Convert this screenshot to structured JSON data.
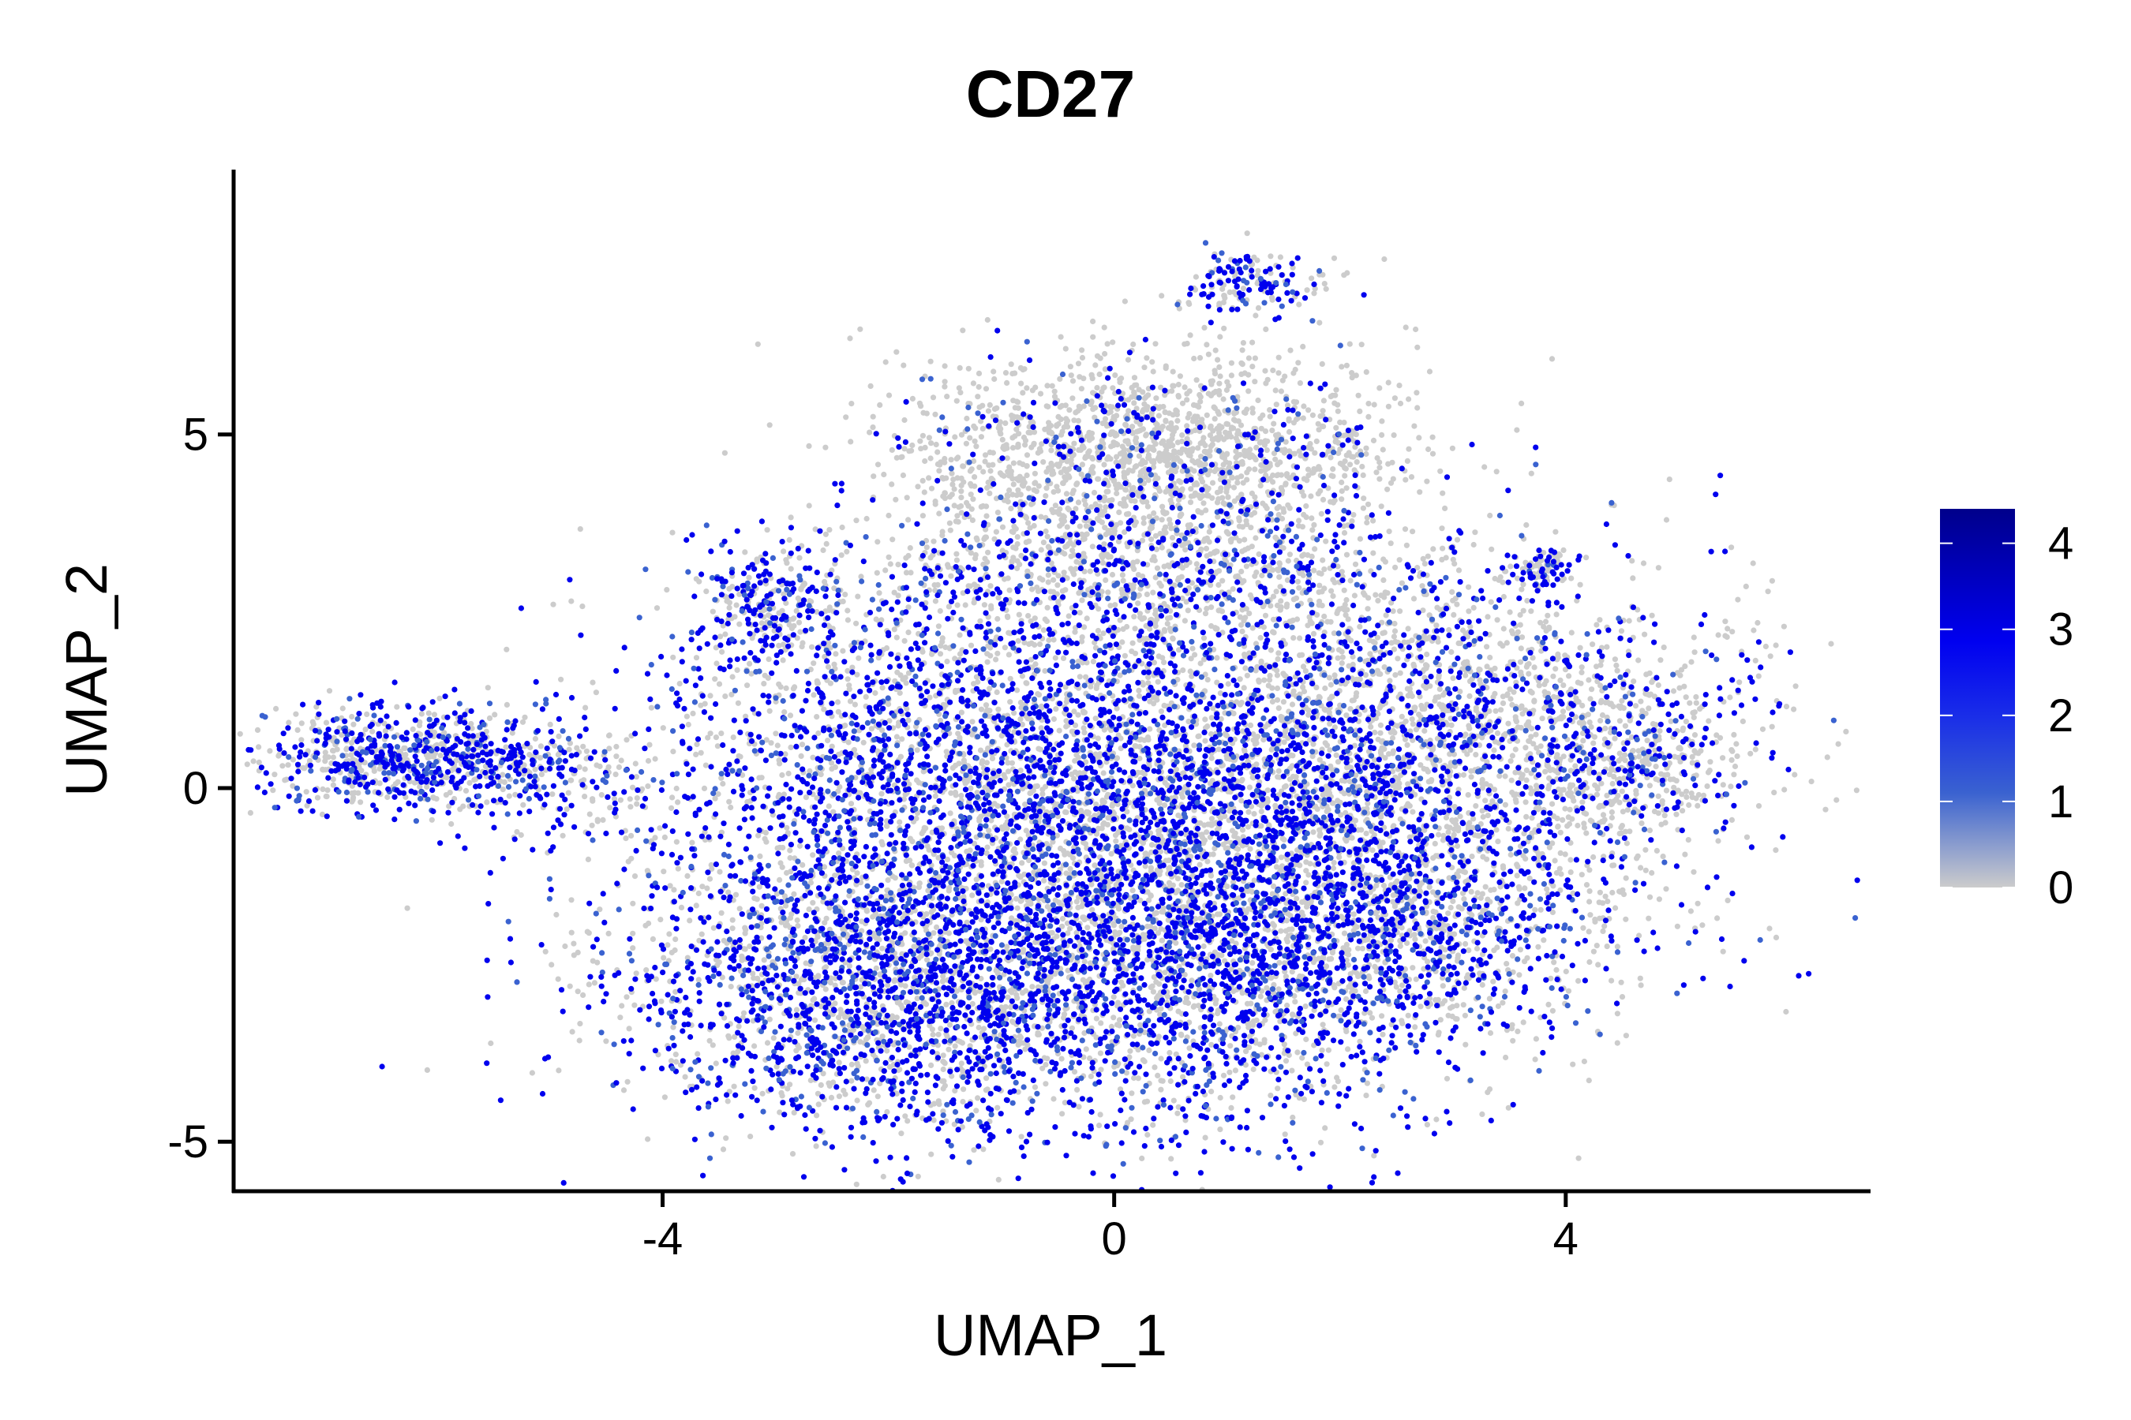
{
  "chart_data": {
    "type": "scatter",
    "title": "CD27",
    "xlabel": "UMAP_1",
    "ylabel": "UMAP_2",
    "xlim": [
      -7.8,
      6.7
    ],
    "ylim": [
      -5.7,
      8.8
    ],
    "x_ticks": [
      -4,
      0,
      4
    ],
    "y_ticks": [
      -5,
      0,
      5
    ],
    "x_tick_labels": [
      "-4",
      "0",
      "4"
    ],
    "y_tick_labels": [
      "-5",
      "0",
      "5"
    ],
    "grid": false,
    "legend": {
      "type": "colorbar",
      "placement": "right",
      "range": [
        0,
        4.4
      ],
      "ticks": [
        0,
        1,
        2,
        3,
        4
      ],
      "tick_labels": [
        "0",
        "1",
        "2",
        "3",
        "4"
      ],
      "colors": [
        "#cccccc",
        "#3a62d0",
        "#1a2ee8",
        "#0000f0",
        "#00008b"
      ]
    },
    "colors": {
      "unexpressed": "#cccccc",
      "low": "#3a62d0",
      "high": "#0000ee"
    },
    "point_count_note": "dense cells",
    "clusters": [
      {
        "center": [
          -6.2,
          0.4
        ],
        "spread": [
          0.75,
          0.35
        ],
        "n": 900,
        "expr_rate": 0.55
      },
      {
        "center": [
          -4.6,
          0.0
        ],
        "spread": [
          0.5,
          0.6
        ],
        "n": 160,
        "expr_rate": 0.5
      },
      {
        "center": [
          -3.1,
          2.6
        ],
        "spread": [
          0.3,
          0.45
        ],
        "n": 240,
        "expr_rate": 0.5
      },
      {
        "center": [
          -1.6,
          0.5
        ],
        "spread": [
          1.2,
          1.4
        ],
        "n": 2200,
        "expr_rate": 0.55
      },
      {
        "center": [
          -2.1,
          -2.7
        ],
        "spread": [
          1.2,
          1.1
        ],
        "n": 2400,
        "expr_rate": 0.6
      },
      {
        "center": [
          0.6,
          -2.4
        ],
        "spread": [
          1.3,
          1.3
        ],
        "n": 2600,
        "expr_rate": 0.58
      },
      {
        "center": [
          0.7,
          0.1
        ],
        "spread": [
          1.3,
          1.4
        ],
        "n": 2300,
        "expr_rate": 0.5
      },
      {
        "center": [
          0.3,
          4.7
        ],
        "spread": [
          1.1,
          0.75
        ],
        "n": 1900,
        "expr_rate": 0.12
      },
      {
        "center": [
          0.5,
          3.0
        ],
        "spread": [
          1.3,
          0.6
        ],
        "n": 800,
        "expr_rate": 0.3
      },
      {
        "center": [
          1.2,
          7.1
        ],
        "spread": [
          0.35,
          0.25
        ],
        "n": 170,
        "expr_rate": 0.55
      },
      {
        "center": [
          3.0,
          0.8
        ],
        "spread": [
          1.3,
          1.1
        ],
        "n": 2100,
        "expr_rate": 0.35
      },
      {
        "center": [
          2.6,
          -1.9
        ],
        "spread": [
          1.1,
          0.8
        ],
        "n": 1200,
        "expr_rate": 0.5
      },
      {
        "center": [
          4.6,
          0.3
        ],
        "spread": [
          0.45,
          0.55
        ],
        "n": 300,
        "expr_rate": 0.3
      },
      {
        "center": [
          3.8,
          3.1
        ],
        "spread": [
          0.12,
          0.15
        ],
        "n": 90,
        "expr_rate": 0.45
      }
    ]
  }
}
